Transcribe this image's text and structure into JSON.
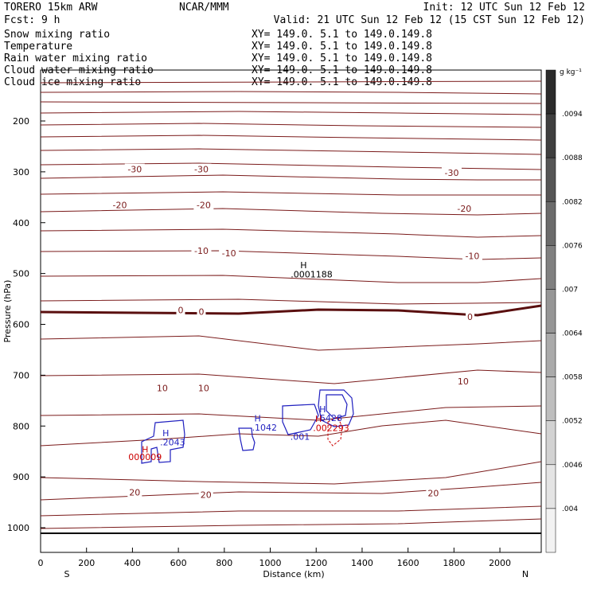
{
  "header": {
    "model": "TORERO  15km ARW",
    "org": "NCAR/MMM",
    "init": "Init: 12 UTC Sun 12 Feb 12",
    "fcst": "Fcst:    9 h",
    "valid": "Valid: 21 UTC Sun 12 Feb 12 (15 CST Sun 12 Feb 12)"
  },
  "legend": [
    {
      "name": "Snow mixing ratio",
      "xy": "XY= 149.0.  5.1 to 149.0.149.8",
      "color": "#000000"
    },
    {
      "name": "Temperature",
      "xy": "XY= 149.0.  5.1 to 149.0.149.8",
      "color": "#cc0000"
    },
    {
      "name": "Rain water mixing ratio",
      "xy": "XY= 149.0.  5.1 to 149.0.149.8",
      "color": "#cc0000"
    },
    {
      "name": "Cloud water mixing ratio",
      "xy": "XY= 149.0.  5.1 to 149.0.149.8",
      "color": "#1f1fbf"
    },
    {
      "name": "Cloud ice mixing ratio",
      "xy": "XY= 149.0.  5.1 to 149.0.149.8",
      "color": "#000000"
    }
  ],
  "chart_data": {
    "type": "contour-cross-section",
    "xlabel": "Distance (km)",
    "ylabel": "Pressure (hPa)",
    "xlim": [
      0,
      2180
    ],
    "ylim": [
      1050,
      110
    ],
    "xticks": [
      0,
      200,
      400,
      600,
      800,
      1000,
      1200,
      1400,
      1600,
      1800,
      2000
    ],
    "yticks": [
      200,
      300,
      400,
      500,
      600,
      700,
      800,
      900,
      1000
    ],
    "x_end_labels": {
      "left": "S",
      "right": "N"
    },
    "colorbar": {
      "unit": "g kg⁻¹",
      "ticks": [
        ".0094",
        ".0088",
        ".0082",
        ".0076",
        ".007",
        ".0064",
        ".0058",
        ".0052",
        ".0046",
        ".004"
      ],
      "colors": [
        "#2b2b2b",
        "#3f3f3f",
        "#555555",
        "#6b6b6b",
        "#808080",
        "#969696",
        "#aaaaaa",
        "#bebebe",
        "#d2d2d2",
        "#e4e4e4",
        "#f2f2f2"
      ]
    },
    "temperature_contour_labels": [
      {
        "text": "-30",
        "x": 410,
        "p": 295,
        "c": "#7a1a1a"
      },
      {
        "text": "-30",
        "x": 700,
        "p": 295,
        "c": "#7a1a1a"
      },
      {
        "text": "-30",
        "x": 1790,
        "p": 302,
        "c": "#7a1a1a"
      },
      {
        "text": "-20",
        "x": 345,
        "p": 365,
        "c": "#7a1a1a"
      },
      {
        "text": "-20",
        "x": 710,
        "p": 365,
        "c": "#7a1a1a"
      },
      {
        "text": "-20",
        "x": 1845,
        "p": 372,
        "c": "#7a1a1a"
      },
      {
        "text": "-10",
        "x": 700,
        "p": 455,
        "c": "#7a1a1a"
      },
      {
        "text": "-10",
        "x": 820,
        "p": 460,
        "c": "#7a1a1a"
      },
      {
        "text": "-10",
        "x": 1880,
        "p": 465,
        "c": "#7a1a1a"
      },
      {
        "text": "0",
        "x": 610,
        "p": 572,
        "c": "#7a1a1a"
      },
      {
        "text": "0",
        "x": 700,
        "p": 575,
        "c": "#7a1a1a"
      },
      {
        "text": "0",
        "x": 1870,
        "p": 585,
        "c": "#7a1a1a"
      },
      {
        "text": "10",
        "x": 530,
        "p": 725,
        "c": "#7a1a1a"
      },
      {
        "text": "10",
        "x": 710,
        "p": 725,
        "c": "#7a1a1a"
      },
      {
        "text": "10",
        "x": 1840,
        "p": 712,
        "c": "#7a1a1a"
      },
      {
        "text": "20",
        "x": 410,
        "p": 930,
        "c": "#7a1a1a"
      },
      {
        "text": "20",
        "x": 720,
        "p": 935,
        "c": "#7a1a1a"
      },
      {
        "text": "20",
        "x": 1710,
        "p": 932,
        "c": "#7a1a1a"
      }
    ],
    "annotations": [
      {
        "text": "H",
        "x": 1145,
        "p": 490,
        "c": "#000000"
      },
      {
        "text": ".0001188",
        "x": 1180,
        "p": 508,
        "c": "#000000"
      },
      {
        "text": "H",
        "x": 545,
        "p": 820,
        "c": "#1f1fbf"
      },
      {
        "text": ".2043",
        "x": 575,
        "p": 838,
        "c": "#1f1fbf"
      },
      {
        "text": "H",
        "x": 455,
        "p": 852,
        "c": "#cc0000"
      },
      {
        "text": "000009",
        "x": 455,
        "p": 867,
        "c": "#cc0000"
      },
      {
        "text": "H",
        "x": 945,
        "p": 791,
        "c": "#1f1fbf"
      },
      {
        "text": ".1042",
        "x": 975,
        "p": 809,
        "c": "#1f1fbf"
      },
      {
        "text": ".001",
        "x": 1130,
        "p": 827,
        "c": "#1f1fbf"
      },
      {
        "text": "H",
        "x": 1228,
        "p": 773,
        "c": "#1f1fbf"
      },
      {
        "text": "5428",
        "x": 1265,
        "p": 790,
        "c": "#1f1fbf"
      },
      {
        "text": "H",
        "x": 1210,
        "p": 792,
        "c": "#cc0000"
      },
      {
        "text": ".002293",
        "x": 1265,
        "p": 810,
        "c": "#cc0000"
      }
    ]
  }
}
